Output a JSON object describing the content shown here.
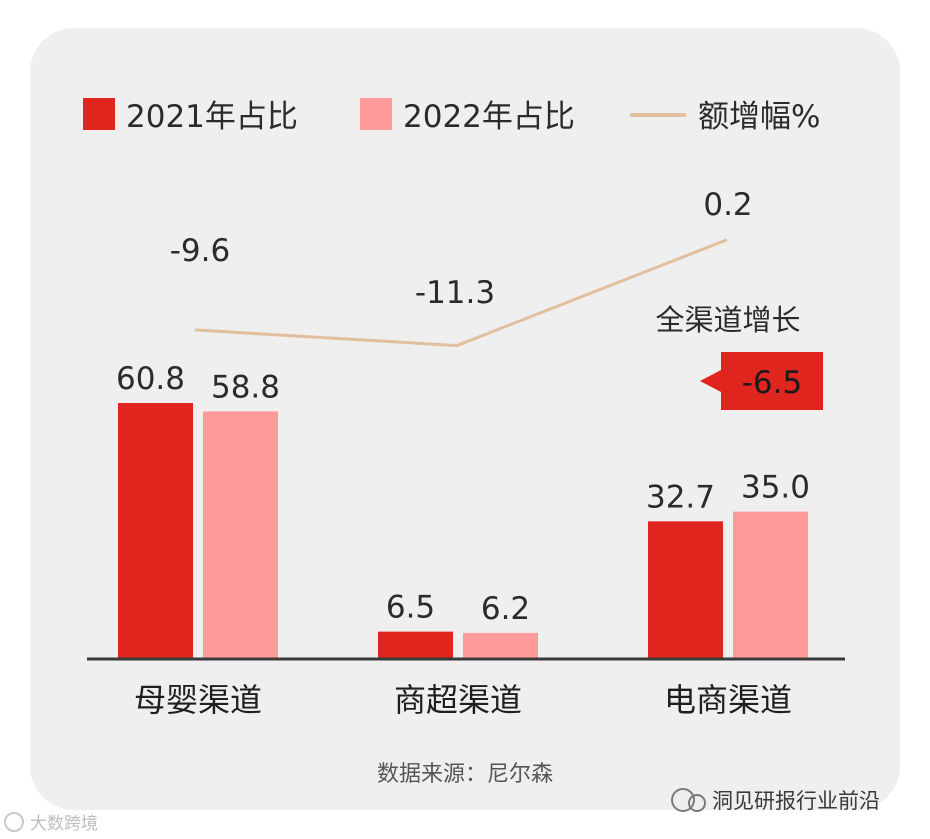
{
  "colors": {
    "series_2021": "#e0251f",
    "series_2022": "#ff9a9a",
    "growth_line": "#e2bf9d",
    "callout": "#e0251f",
    "card_bg": "#efefef"
  },
  "legend": {
    "item_2021": "2021年占比",
    "item_2022": "2022年占比",
    "item_growth": "额增幅%"
  },
  "annotation": {
    "title": "全渠道增长",
    "value": "-6.5"
  },
  "source": "数据来源：尼尔森",
  "watermark": {
    "wechat": "洞见研报行业前沿",
    "corner": "大数跨境"
  },
  "chart_data": {
    "type": "bar",
    "categories": [
      "母婴渠道",
      "商超渠道",
      "电商渠道"
    ],
    "series": [
      {
        "name": "2021年占比",
        "values": [
          60.8,
          6.5,
          32.7
        ]
      },
      {
        "name": "2022年占比",
        "values": [
          58.8,
          6.2,
          35.0
        ]
      }
    ],
    "line_series": {
      "name": "额增幅%",
      "values": [
        -9.6,
        -11.3,
        0.2
      ]
    },
    "value_labels": {
      "s2021": [
        "60.8",
        "6.5",
        "32.7"
      ],
      "s2022": [
        "58.8",
        "6.2",
        "35.0"
      ],
      "growth": [
        "-9.6",
        "-11.3",
        "0.2"
      ]
    },
    "legend_position": "top",
    "grid": false
  }
}
